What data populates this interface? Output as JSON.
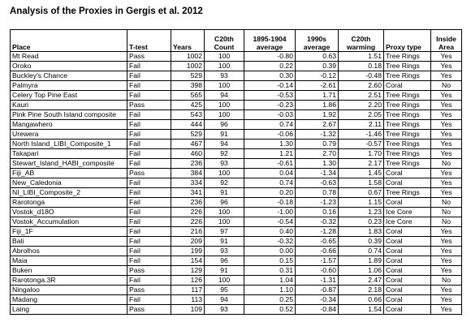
{
  "title": "Analysis of the Proxies in Gergis et al. 2012",
  "columns": [
    "Place",
    "T-test",
    "Years",
    "C20th Count",
    "1895-1904 average",
    "1990s average",
    "C20th warming",
    "Proxy type",
    "Inside Area"
  ],
  "rows": [
    [
      "Mt Read",
      "Pass",
      "1002",
      "100",
      "-0.80",
      "0.63",
      "1.51",
      "Tree Rings",
      "Yes"
    ],
    [
      "Oroko",
      "Fail",
      "1002",
      "100",
      "0.22",
      "0.39",
      "0.18",
      "Tree Rings",
      "Yes"
    ],
    [
      "Buckley's Chance",
      "Fail",
      "529",
      "93",
      "0.30",
      "-0.12",
      "-0.48",
      "Tree Rings",
      "Yes"
    ],
    [
      "Palmyra",
      "Fail",
      "398",
      "100",
      "-0.14",
      "-2.61",
      "2.60",
      "Coral",
      "No"
    ],
    [
      "Celery Top Pine East",
      "Fail",
      "565",
      "94",
      "-0.53",
      "1.71",
      "2.51",
      "Tree Rings",
      "Yes"
    ],
    [
      "Kauri",
      "Pass",
      "425",
      "100",
      "-0.23",
      "1.86",
      "2.20",
      "Tree Rings",
      "Yes"
    ],
    [
      "Pink Pine South Island composite",
      "Fail",
      "543",
      "100",
      "-0.03",
      "1.92",
      "2.05",
      "Tree Rings",
      "Yes"
    ],
    [
      "Mangawhero",
      "Fail",
      "444",
      "96",
      "0.74",
      "2.67",
      "2.11",
      "Tree Rings",
      "Yes"
    ],
    [
      "Urewera",
      "Fail",
      "529",
      "91",
      "-0.06",
      "-1.32",
      "-1.46",
      "Tree Rings",
      "Yes"
    ],
    [
      "North Island_LIBI_Composite_1",
      "Fail",
      "467",
      "94",
      "1.30",
      "0.79",
      "-0.57",
      "Tree Rings",
      "Yes"
    ],
    [
      "Takapari",
      "Fail",
      "460",
      "92",
      "1.21",
      "2.70",
      "1.70",
      "Tree Rings",
      "Yes"
    ],
    [
      "Stewart_Island_HABI_composite",
      "Fail",
      "236",
      "93",
      "-0.61",
      "1.30",
      "2.17",
      "Tree Rings",
      "No"
    ],
    [
      "Fiji_AB",
      "Pass",
      "384",
      "100",
      "0.04",
      "-1.34",
      "1.45",
      "Coral",
      "Yes"
    ],
    [
      "New_Caledonia",
      "Fail",
      "334",
      "92",
      "0.74",
      "-0.63",
      "1.58",
      "Coral",
      "Yes"
    ],
    [
      "NI_LIBI_Composite_2",
      "Fail",
      "341",
      "91",
      "0.20",
      "0.78",
      "0.67",
      "Tree Rings",
      "Yes"
    ],
    [
      "Rarotonga",
      "Fail",
      "236",
      "96",
      "-0.18",
      "-1.23",
      "1.15",
      "Coral",
      "No"
    ],
    [
      "Vostok_d18O",
      "Fail",
      "226",
      "100",
      "-1.00",
      "0.16",
      "1.23",
      "Ice Core",
      "No"
    ],
    [
      "Vostok_Accumulation",
      "Fail",
      "226",
      "100",
      "-0.54",
      "-0.32",
      "0.23",
      "Ice Core",
      "No"
    ],
    [
      "Fiji_1F",
      "Fail",
      "216",
      "97",
      "0.40",
      "-1.28",
      "1.83",
      "Coral",
      "Yes"
    ],
    [
      "Bali",
      "Fail",
      "209",
      "91",
      "-0.32",
      "-0.65",
      "0.39",
      "Coral",
      "Yes"
    ],
    [
      "Abrolhos",
      "Fail",
      "199",
      "93",
      "0.00",
      "-0.66",
      "0.74",
      "Coral",
      "Yes"
    ],
    [
      "Maia",
      "Fail",
      "154",
      "96",
      "0.15",
      "-1.57",
      "1.89",
      "Coral",
      "Yes"
    ],
    [
      "Buken",
      "Pass",
      "129",
      "91",
      "0.31",
      "-0.60",
      "1.06",
      "Coral",
      "Yes"
    ],
    [
      "Rarotonga.3R",
      "Fail",
      "126",
      "100",
      "1.04",
      "-1.31",
      "2.47",
      "Coral",
      "No"
    ],
    [
      "Ningaloo",
      "Pass",
      "117",
      "95",
      "1.10",
      "-0.87",
      "2.18",
      "Coral",
      "Yes"
    ],
    [
      "Madang",
      "Fail",
      "113",
      "94",
      "0.25",
      "-0.34",
      "0.66",
      "Coral",
      "Yes"
    ],
    [
      "Laing",
      "Pass",
      "109",
      "93",
      "0.52",
      "-0.84",
      "1.54",
      "Coral",
      "Yes"
    ]
  ]
}
